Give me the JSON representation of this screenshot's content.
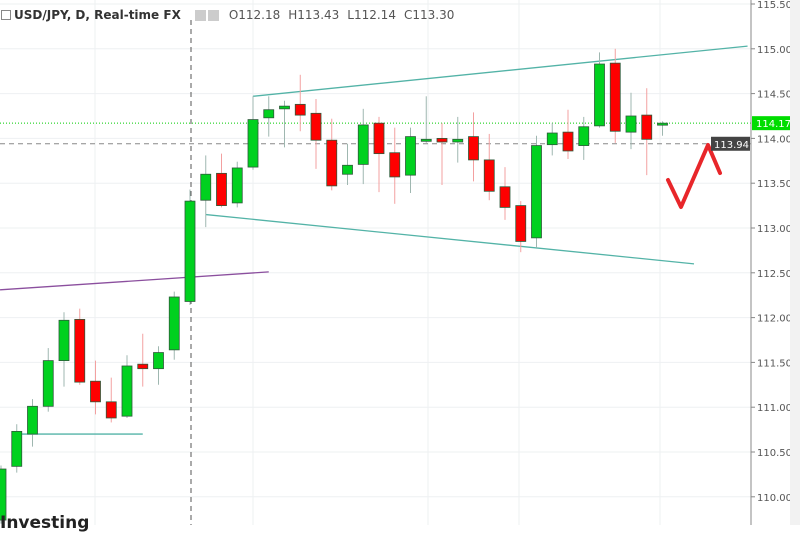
{
  "header": {
    "symbol": "USD/JPY, D, Real-time FX",
    "open": "O112.18",
    "high": "H113.43",
    "low": "L112.14",
    "close": "C113.30",
    "icons": [
      "eye-icon",
      "gear-icon"
    ]
  },
  "logo": "Investing",
  "chart_data": {
    "type": "candlestick",
    "ylim": [
      109.7,
      115.55
    ],
    "yticks": [
      "115.50",
      "115.00",
      "114.50",
      "114.00",
      "113.50",
      "113.00",
      "112.50",
      "112.00",
      "111.50",
      "111.00",
      "110.50",
      "110.00"
    ],
    "grid": true,
    "colors": {
      "up": "#00d11f",
      "down": "#ff0000",
      "trend": "#53b3a7",
      "purple": "#8b4f9e",
      "last": "#00cc00",
      "crosshair": "#555555"
    },
    "last_price": {
      "value": 114.17,
      "label": "114.17"
    },
    "crosshair": {
      "price": 113.94,
      "label": "113.94",
      "bar": 13
    },
    "candles": [
      [
        109.74,
        110.35,
        109.7,
        110.31
      ],
      [
        110.34,
        110.81,
        110.27,
        110.73
      ],
      [
        110.7,
        111.09,
        110.56,
        111.01
      ],
      [
        111.01,
        111.66,
        110.95,
        111.52
      ],
      [
        111.52,
        112.06,
        111.23,
        111.97
      ],
      [
        111.98,
        112.1,
        111.25,
        111.28
      ],
      [
        111.29,
        111.52,
        110.92,
        111.06
      ],
      [
        111.06,
        111.33,
        110.83,
        110.88
      ],
      [
        110.9,
        111.58,
        110.88,
        111.46
      ],
      [
        111.48,
        111.82,
        111.23,
        111.43
      ],
      [
        111.43,
        111.68,
        111.25,
        111.61
      ],
      [
        111.64,
        112.29,
        111.53,
        112.23
      ],
      [
        112.18,
        113.43,
        112.14,
        113.3
      ],
      [
        113.31,
        113.81,
        113.01,
        113.6
      ],
      [
        113.61,
        113.83,
        113.23,
        113.25
      ],
      [
        113.28,
        113.74,
        113.23,
        113.67
      ],
      [
        113.68,
        114.47,
        113.65,
        114.21
      ],
      [
        114.23,
        114.47,
        114.02,
        114.32
      ],
      [
        114.33,
        114.42,
        113.9,
        114.36
      ],
      [
        114.38,
        114.71,
        114.08,
        114.26
      ],
      [
        114.28,
        114.44,
        113.66,
        113.98
      ],
      [
        113.98,
        114.22,
        113.42,
        113.47
      ],
      [
        113.6,
        113.94,
        113.48,
        113.7
      ],
      [
        113.71,
        114.33,
        113.49,
        114.15
      ],
      [
        114.17,
        114.24,
        113.4,
        113.83
      ],
      [
        113.84,
        114.12,
        113.27,
        113.57
      ],
      [
        113.59,
        114.12,
        113.39,
        114.02
      ],
      [
        113.98,
        114.47,
        113.95,
        113.99
      ],
      [
        114.0,
        114.17,
        113.48,
        113.96
      ],
      [
        113.96,
        114.24,
        113.73,
        113.99
      ],
      [
        114.02,
        114.29,
        113.52,
        113.76
      ],
      [
        113.76,
        114.05,
        113.31,
        113.41
      ],
      [
        113.46,
        113.68,
        113.09,
        113.23
      ],
      [
        113.25,
        113.3,
        112.73,
        112.85
      ],
      [
        112.89,
        114.03,
        112.78,
        113.92
      ],
      [
        113.93,
        114.17,
        113.81,
        114.06
      ],
      [
        114.07,
        114.32,
        113.77,
        113.86
      ],
      [
        113.92,
        114.24,
        113.76,
        114.13
      ],
      [
        114.14,
        114.96,
        114.12,
        114.83
      ],
      [
        114.84,
        115.0,
        113.95,
        114.08
      ],
      [
        114.07,
        114.51,
        113.88,
        114.25
      ],
      [
        114.26,
        114.56,
        113.59,
        113.99
      ],
      [
        114.16,
        114.19,
        114.03,
        114.17
      ]
    ],
    "candle_fields": [
      "open",
      "high",
      "low",
      "close"
    ],
    "trendlines": [
      {
        "name": "upper-channel-line",
        "from_bar": 17,
        "from_price": 114.47,
        "to_bar": 48.4,
        "to_price": 115.03,
        "color": "#53b3a7"
      },
      {
        "name": "lower-channel-line",
        "from_bar": 14,
        "from_price": 113.15,
        "to_bar": 45,
        "to_price": 112.6,
        "color": "#53b3a7"
      },
      {
        "name": "purple-trend-line",
        "from_bar": 0.94,
        "from_price": 112.31,
        "to_bar": 18,
        "to_price": 112.51,
        "color": "#8b4f9e"
      },
      {
        "name": "support-line",
        "from_bar": 2,
        "from_price": 110.7,
        "to_bar": 10,
        "to_price": 110.7,
        "color": "#53b3a7"
      }
    ]
  }
}
